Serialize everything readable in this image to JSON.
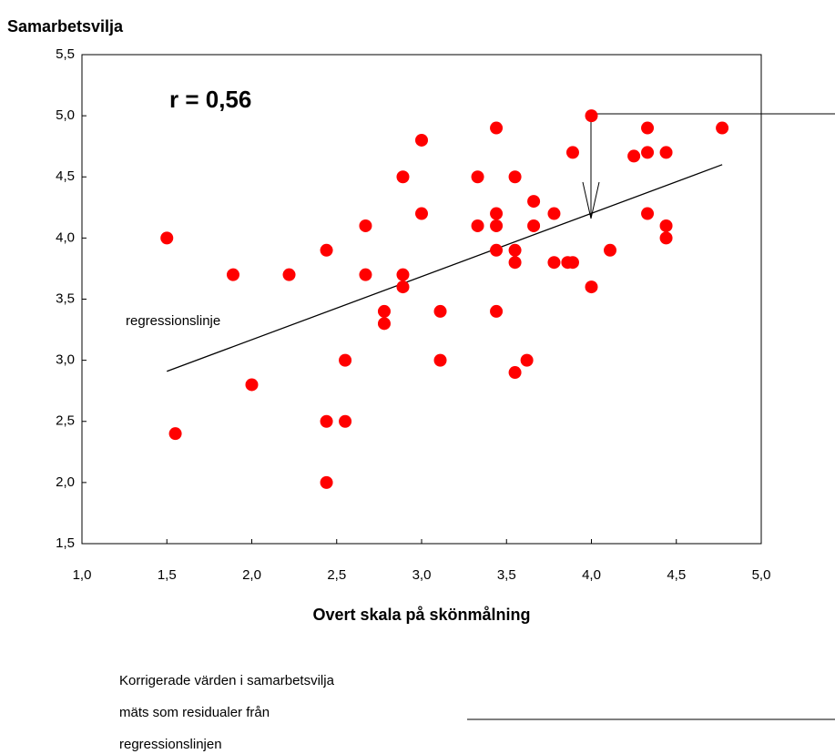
{
  "chart_data": {
    "type": "scatter",
    "y_label": "Samarbetsvilja",
    "x_label": "Overt skala på skönmålning",
    "annotation": "r = 0,56",
    "line_label": "regressionslinje",
    "note": [
      "Korrigerade värden i samarbetsvilja",
      "mäts som residualer från",
      "regressionslinjen"
    ],
    "color": "#ff0000",
    "x": [
      1.5,
      1.55,
      1.89,
      2.0,
      2.22,
      2.44,
      2.44,
      2.44,
      2.55,
      2.55,
      2.67,
      2.67,
      2.78,
      2.78,
      2.89,
      2.89,
      2.89,
      3.0,
      3.0,
      3.11,
      3.11,
      3.33,
      3.33,
      3.44,
      3.44,
      3.44,
      3.44,
      3.44,
      3.55,
      3.55,
      3.55,
      3.55,
      3.62,
      3.66,
      3.66,
      3.78,
      3.78,
      3.86,
      3.89,
      3.89,
      4.0,
      4.0,
      4.11,
      4.25,
      4.33,
      4.33,
      4.33,
      4.44,
      4.44,
      4.44,
      4.77
    ],
    "values": [
      4.0,
      2.4,
      3.7,
      2.8,
      3.7,
      3.9,
      2.5,
      2.0,
      3.0,
      2.5,
      4.1,
      3.7,
      3.4,
      3.3,
      4.5,
      3.7,
      3.6,
      4.8,
      4.2,
      3.4,
      3.0,
      4.5,
      4.1,
      4.9,
      4.2,
      4.1,
      3.9,
      3.4,
      4.5,
      3.9,
      3.8,
      2.9,
      3.0,
      4.3,
      4.1,
      4.2,
      3.8,
      3.8,
      3.8,
      4.7,
      5.0,
      3.6,
      3.9,
      4.67,
      4.9,
      4.7,
      4.2,
      4.7,
      4.1,
      4.0,
      4.9
    ],
    "regression": {
      "x": [
        1.5,
        4.77
      ],
      "y": [
        2.91,
        4.6
      ]
    },
    "xlim": [
      1,
      5
    ],
    "ylim": [
      1.5,
      5.5
    ],
    "xticks": [
      {
        "value": 1,
        "label": "1,0"
      },
      {
        "value": 1.5,
        "label": "1,5"
      },
      {
        "value": 2,
        "label": "2,0"
      },
      {
        "value": 2.5,
        "label": "2,5"
      },
      {
        "value": 3,
        "label": "3,0"
      },
      {
        "value": 3.5,
        "label": "3,5"
      },
      {
        "value": 4,
        "label": "4,0"
      },
      {
        "value": 4.5,
        "label": "4,5"
      },
      {
        "value": 5,
        "label": "5,0"
      }
    ],
    "yticks": [
      {
        "value": 1.5,
        "label": "1,5"
      },
      {
        "value": 2,
        "label": "2,0"
      },
      {
        "value": 2.5,
        "label": "2,5"
      },
      {
        "value": 3,
        "label": "3,0"
      },
      {
        "value": 3.5,
        "label": "3,5"
      },
      {
        "value": 4,
        "label": "4,0"
      },
      {
        "value": 4.5,
        "label": "4,5"
      },
      {
        "value": 5,
        "label": "5,0"
      },
      {
        "value": 5.5,
        "label": "5,5"
      }
    ],
    "grid": false
  }
}
